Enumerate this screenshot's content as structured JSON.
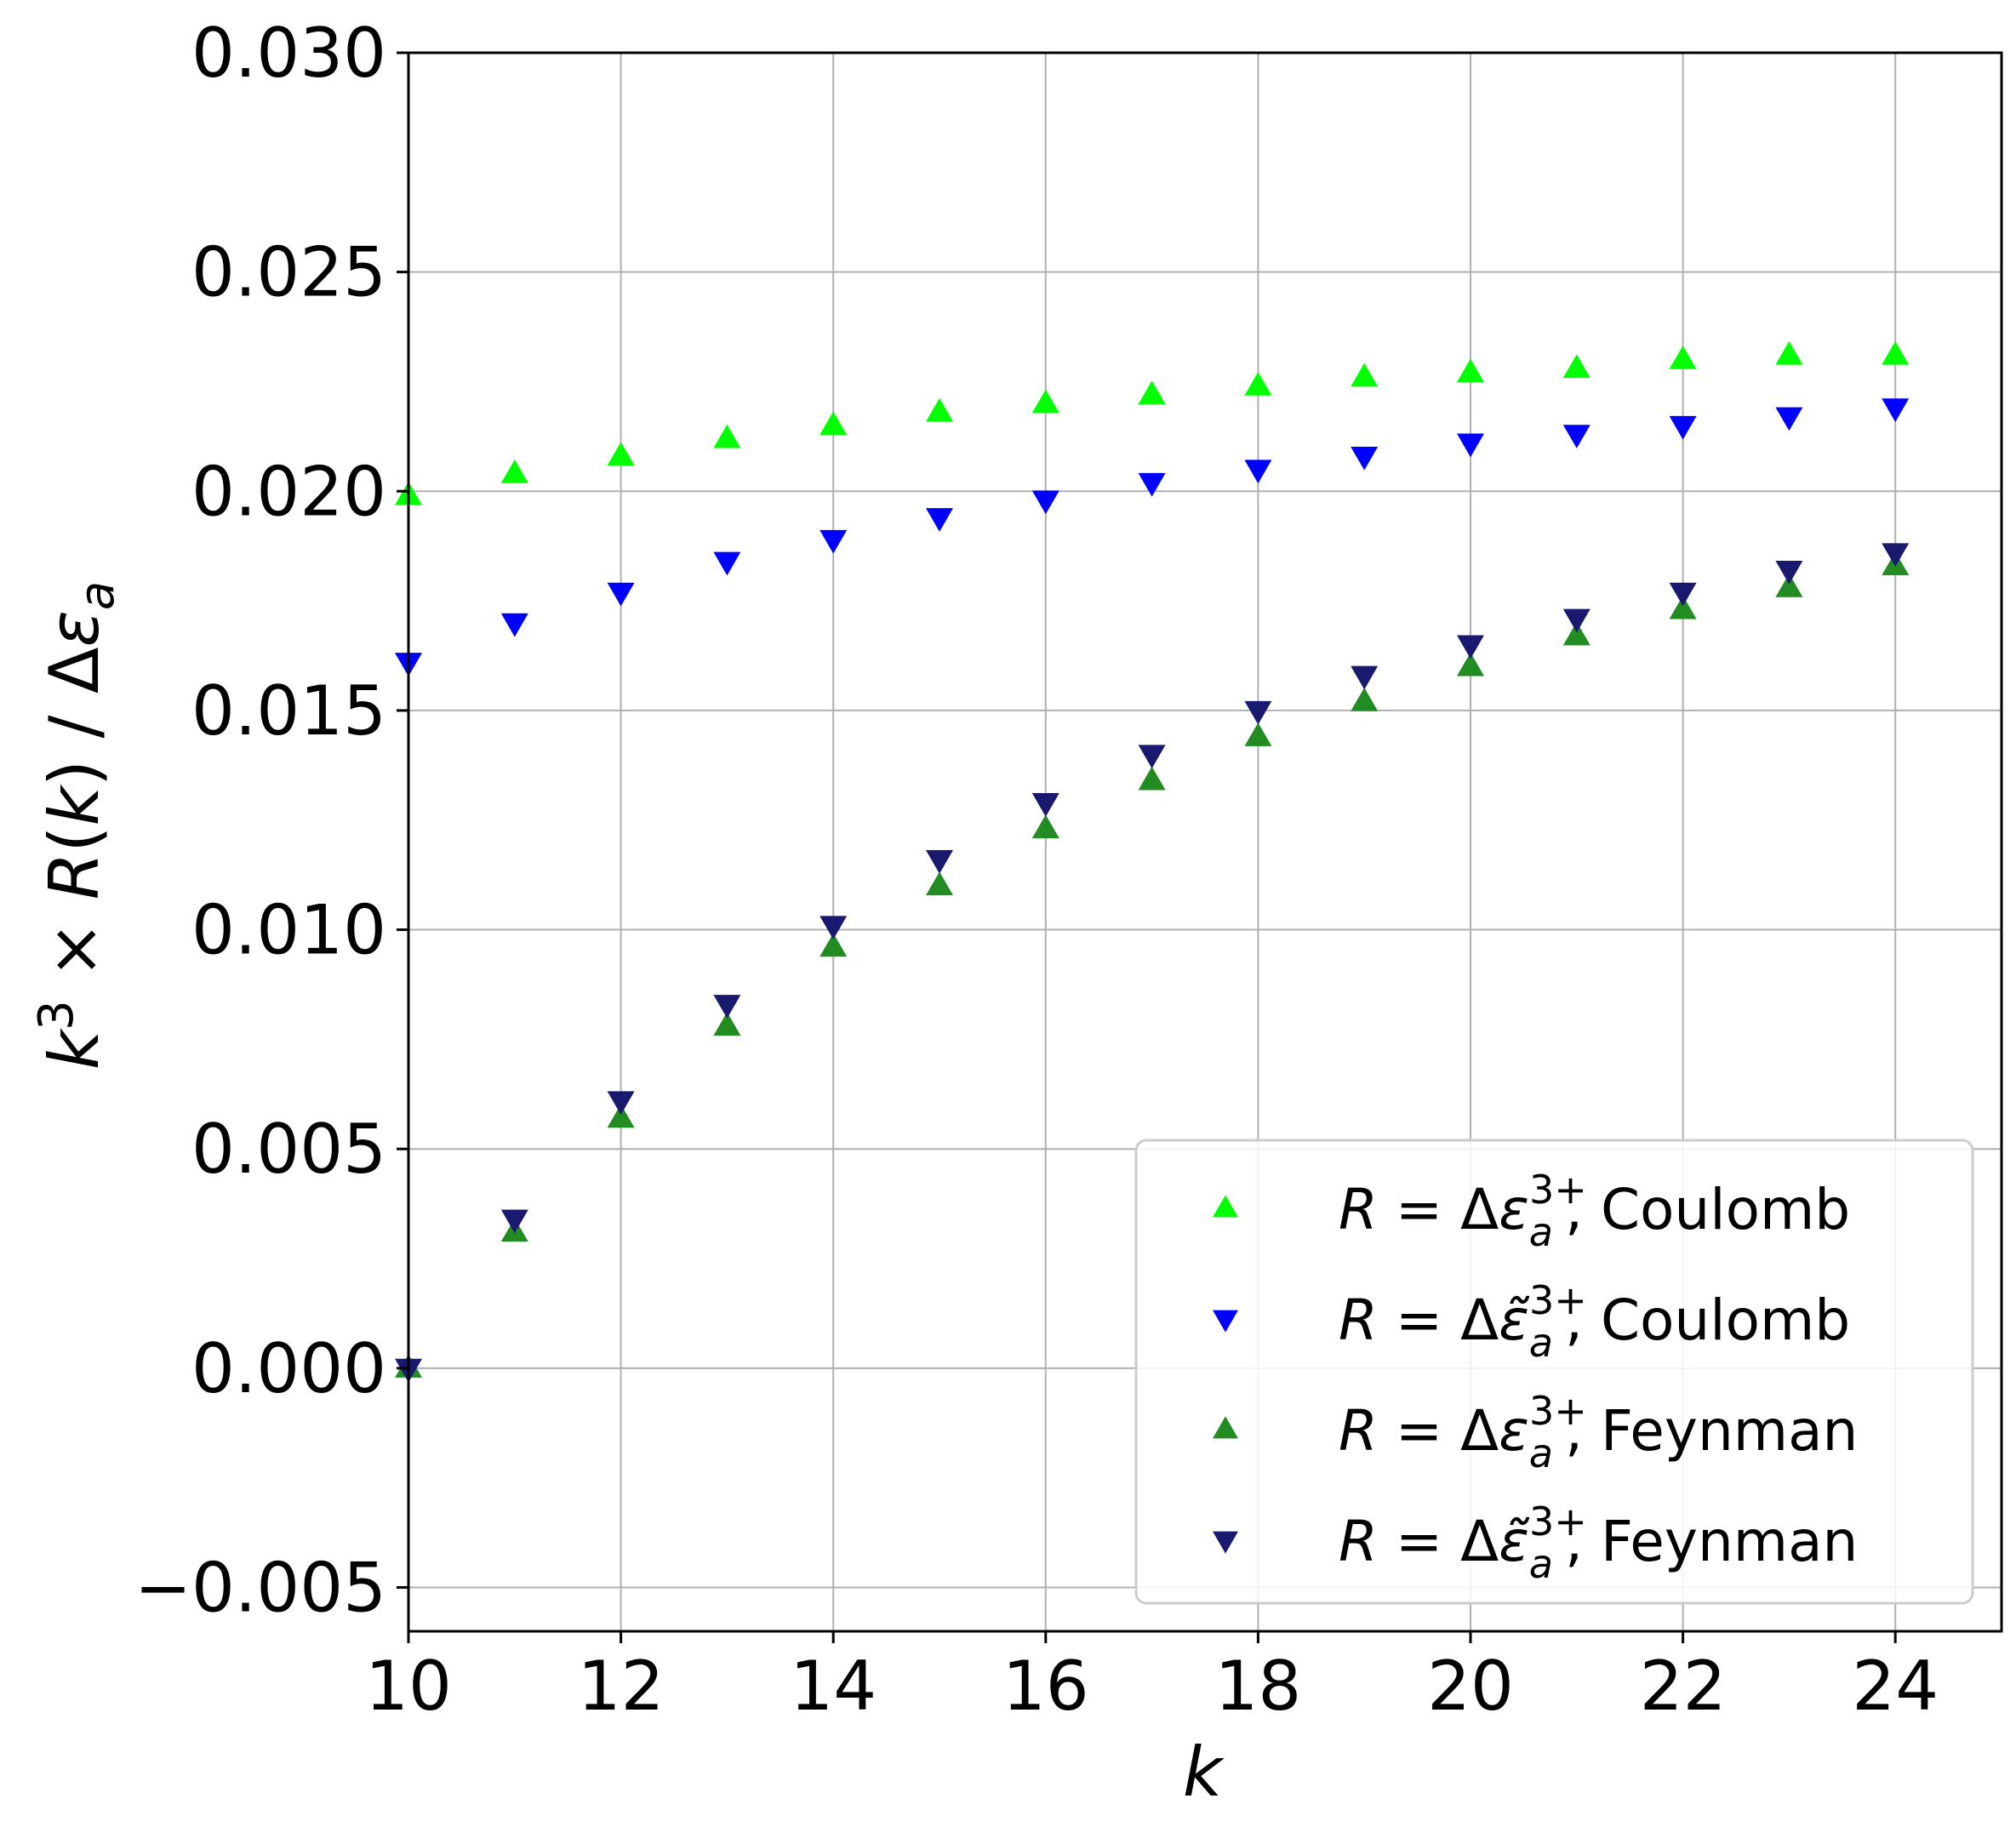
{
  "chart_data": {
    "type": "scatter",
    "title": "",
    "xlabel": "k",
    "ylabel": "k^3 × R(k) / Δε_a",
    "xlim": [
      10,
      25
    ],
    "ylim": [
      -0.006,
      0.03
    ],
    "xticks": [
      10,
      12,
      14,
      16,
      18,
      20,
      22,
      24
    ],
    "xtick_labels": [
      "10",
      "12",
      "14",
      "16",
      "18",
      "20",
      "22",
      "24"
    ],
    "yticks": [
      -0.005,
      0.0,
      0.005,
      0.01,
      0.015,
      0.02,
      0.025,
      0.03
    ],
    "ytick_labels": [
      "−0.005",
      "0.000",
      "0.005",
      "0.010",
      "0.015",
      "0.020",
      "0.025",
      "0.030"
    ],
    "grid": true,
    "legend_position": "lower-right",
    "x": [
      10,
      11,
      12,
      13,
      14,
      15,
      16,
      17,
      18,
      19,
      20,
      21,
      22,
      23,
      24
    ],
    "series": [
      {
        "name": "R = Δε_a^{3+}, Coulomb",
        "legend": {
          "pre": "R",
          "eq": " = Δ",
          "sym": "ε",
          "sub": "a",
          "sup": "3+",
          "post": ", Coulomb"
        },
        "marker": "triangle-up",
        "color": "#00ff00",
        "values": [
          0.0199,
          0.0204,
          0.0208,
          0.0212,
          0.0215,
          0.0218,
          0.022,
          0.0222,
          0.0224,
          0.0226,
          0.0227,
          0.0228,
          0.023,
          0.0231,
          0.0231
        ]
      },
      {
        "name": "R = Δε̃_a^{3+}, Coulomb",
        "legend": {
          "pre": "R",
          "eq": " = Δ",
          "sym": "ε̃",
          "sub": "a",
          "sup": "3+",
          "post": ", Coulomb"
        },
        "marker": "triangle-down",
        "color": "#0000ff",
        "values": [
          0.0161,
          0.017,
          0.0177,
          0.0184,
          0.0189,
          0.0194,
          0.0198,
          0.0202,
          0.0205,
          0.0208,
          0.0211,
          0.0213,
          0.0215,
          0.0217,
          0.0219
        ]
      },
      {
        "name": "R = Δε_a^{3+}, Feynman",
        "legend": {
          "pre": "R",
          "eq": " = Δ",
          "sym": "ε",
          "sub": "a",
          "sup": "3+",
          "post": ", Feynman"
        },
        "marker": "triangle-up",
        "color": "#228b22",
        "values": [
          0.0,
          0.0031,
          0.0057,
          0.0078,
          0.0096,
          0.011,
          0.0123,
          0.0134,
          0.0144,
          0.0152,
          0.016,
          0.0167,
          0.0173,
          0.0178,
          0.0183
        ]
      },
      {
        "name": "R = Δε̃_a^{3+}, Feynman",
        "legend": {
          "pre": "R",
          "eq": " = Δ",
          "sym": "ε̃",
          "sub": "a",
          "sup": "3+",
          "post": ", Feynman"
        },
        "marker": "triangle-down",
        "color": "#191970",
        "values": [
          0.0,
          0.0034,
          0.0061,
          0.0083,
          0.0101,
          0.0116,
          0.0129,
          0.014,
          0.015,
          0.0158,
          0.0165,
          0.0171,
          0.0177,
          0.0182,
          0.0186
        ]
      }
    ]
  }
}
